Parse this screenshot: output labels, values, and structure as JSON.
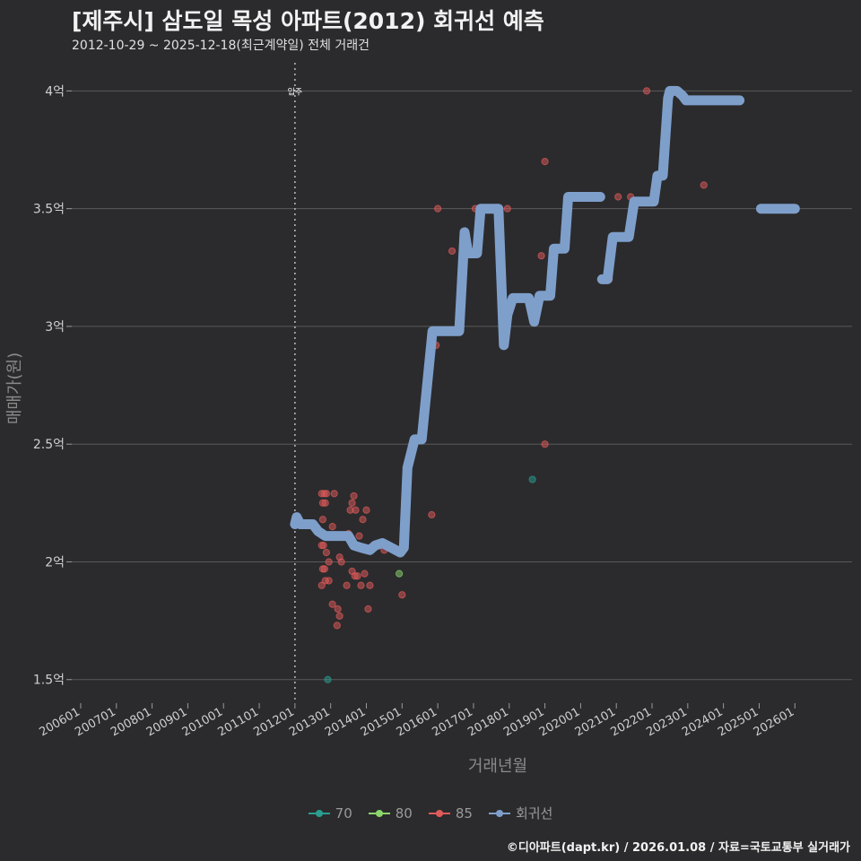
{
  "title": "[제주시] 삼도일 목성 아파트(2012) 회귀선 예측",
  "subtitle": "2012-10-29 ~ 2025-12-18(최근계약일) 전체 거래건",
  "caption": "©디아파트(dapt.kr) / 2026.01.08 / 자료=국토교통부 실거래가",
  "colors": {
    "background": "#2b2b2d",
    "grid": "#5a5a5a",
    "area70": "#2a9d8f",
    "area80": "#8bd66a",
    "area85": "#e05a5a",
    "regression": "#7f9fcb",
    "marker_line": "#bdbdbd"
  },
  "legend": {
    "items": [
      {
        "label": "70",
        "color": "#2a9d8f"
      },
      {
        "label": "80",
        "color": "#8bd66a"
      },
      {
        "label": "85",
        "color": "#e05a5a"
      },
      {
        "label": "회귀선",
        "color": "#7f9fcb"
      }
    ]
  },
  "chart_data": {
    "type": "scatter",
    "xlabel": "거래년월",
    "ylabel": "매매가(원)",
    "xlim": [
      2005.75,
      2027.6
    ],
    "ylim": [
      1.4,
      4.15
    ],
    "y_ticks": [
      1.5,
      2,
      2.5,
      3,
      3.5,
      4
    ],
    "y_tick_labels": [
      "1.5억",
      "2억",
      "2.5억",
      "3억",
      "3.5억",
      "4억"
    ],
    "x_ticks": [
      2006,
      2007,
      2008,
      2009,
      2010,
      2011,
      2012,
      2013,
      2014,
      2015,
      2016,
      2017,
      2018,
      2019,
      2020,
      2021,
      2022,
      2023,
      2024,
      2025,
      2026
    ],
    "x_tick_labels": [
      "200601",
      "200701",
      "200801",
      "200901",
      "201001",
      "201101",
      "201201",
      "201301",
      "201401",
      "201501",
      "201601",
      "201701",
      "201801",
      "201901",
      "202001",
      "202101",
      "202201",
      "202301",
      "202401",
      "202501",
      "202601"
    ],
    "vline": {
      "x": 2012.0,
      "label": "입주"
    },
    "series": [
      {
        "name": "70",
        "points": [
          [
            2012.92,
            1.5
          ],
          [
            2018.65,
            2.35
          ]
        ]
      },
      {
        "name": "80",
        "points": [
          [
            2014.92,
            1.95
          ]
        ]
      },
      {
        "name": "85",
        "points": [
          [
            2012.75,
            2.29
          ],
          [
            2012.78,
            2.25
          ],
          [
            2012.82,
            2.29
          ],
          [
            2012.85,
            2.25
          ],
          [
            2012.88,
            2.29
          ],
          [
            2012.78,
            2.18
          ],
          [
            2012.75,
            2.07
          ],
          [
            2012.8,
            2.07
          ],
          [
            2012.83,
            1.97
          ],
          [
            2012.78,
            1.97
          ],
          [
            2012.75,
            1.9
          ],
          [
            2012.85,
            1.92
          ],
          [
            2012.88,
            2.04
          ],
          [
            2012.95,
            2.0
          ],
          [
            2012.95,
            1.92
          ],
          [
            2013.05,
            1.82
          ],
          [
            2013.1,
            2.29
          ],
          [
            2013.05,
            2.15
          ],
          [
            2013.2,
            1.8
          ],
          [
            2013.25,
            1.77
          ],
          [
            2013.18,
            1.73
          ],
          [
            2013.25,
            2.02
          ],
          [
            2013.3,
            2.0
          ],
          [
            2013.45,
            1.9
          ],
          [
            2013.5,
            2.12
          ],
          [
            2013.55,
            2.22
          ],
          [
            2013.6,
            2.25
          ],
          [
            2013.65,
            2.28
          ],
          [
            2013.7,
            2.22
          ],
          [
            2013.6,
            1.96
          ],
          [
            2013.68,
            1.94
          ],
          [
            2013.75,
            1.94
          ],
          [
            2013.8,
            2.11
          ],
          [
            2013.85,
            1.9
          ],
          [
            2013.9,
            2.18
          ],
          [
            2013.95,
            1.95
          ],
          [
            2014.0,
            2.22
          ],
          [
            2014.05,
            1.8
          ],
          [
            2014.1,
            1.9
          ],
          [
            2014.5,
            2.05
          ],
          [
            2015.0,
            1.86
          ],
          [
            2015.83,
            2.2
          ],
          [
            2015.95,
            2.92
          ],
          [
            2016.0,
            3.5
          ],
          [
            2016.4,
            3.32
          ],
          [
            2017.05,
            3.5
          ],
          [
            2017.95,
            3.5
          ],
          [
            2018.9,
            3.3
          ],
          [
            2019.0,
            3.7
          ],
          [
            2019.0,
            2.5
          ],
          [
            2020.8,
            3.2
          ],
          [
            2020.95,
            3.38
          ],
          [
            2021.05,
            3.55
          ],
          [
            2021.4,
            3.55
          ],
          [
            2021.85,
            4.0
          ],
          [
            2023.45,
            3.6
          ]
        ]
      },
      {
        "name": "회귀선",
        "type": "line",
        "segments": [
          [
            [
              2012.0,
              2.16
            ],
            [
              2012.05,
              2.19
            ],
            [
              2012.15,
              2.16
            ],
            [
              2012.5,
              2.16
            ],
            [
              2012.65,
              2.13
            ],
            [
              2012.85,
              2.11
            ],
            [
              2013.5,
              2.11
            ],
            [
              2013.65,
              2.07
            ],
            [
              2013.85,
              2.06
            ],
            [
              2014.1,
              2.05
            ],
            [
              2014.25,
              2.07
            ],
            [
              2014.45,
              2.08
            ],
            [
              2014.7,
              2.06
            ],
            [
              2014.95,
              2.04
            ],
            [
              2015.05,
              2.06
            ],
            [
              2015.15,
              2.4
            ],
            [
              2015.35,
              2.52
            ],
            [
              2015.55,
              2.52
            ],
            [
              2015.85,
              2.98
            ],
            [
              2016.6,
              2.98
            ],
            [
              2016.75,
              3.4
            ],
            [
              2016.85,
              3.31
            ],
            [
              2017.1,
              3.31
            ],
            [
              2017.2,
              3.5
            ],
            [
              2017.7,
              3.5
            ],
            [
              2017.85,
              2.92
            ],
            [
              2017.95,
              3.05
            ],
            [
              2018.1,
              3.12
            ],
            [
              2018.55,
              3.12
            ],
            [
              2018.7,
              3.02
            ],
            [
              2018.85,
              3.13
            ],
            [
              2019.15,
              3.13
            ],
            [
              2019.25,
              3.33
            ],
            [
              2019.55,
              3.33
            ],
            [
              2019.65,
              3.55
            ],
            [
              2020.55,
              3.55
            ]
          ],
          [
            [
              2020.6,
              3.2
            ],
            [
              2020.75,
              3.2
            ],
            [
              2020.9,
              3.38
            ],
            [
              2021.35,
              3.38
            ],
            [
              2021.5,
              3.53
            ],
            [
              2022.05,
              3.53
            ],
            [
              2022.15,
              3.64
            ],
            [
              2022.3,
              3.64
            ],
            [
              2022.45,
              3.97
            ],
            [
              2022.5,
              4.0
            ],
            [
              2022.7,
              4.0
            ],
            [
              2022.85,
              3.98
            ],
            [
              2022.95,
              3.96
            ],
            [
              2024.45,
              3.96
            ]
          ],
          [
            [
              2025.05,
              3.5
            ],
            [
              2026.0,
              3.5
            ]
          ]
        ]
      }
    ]
  }
}
